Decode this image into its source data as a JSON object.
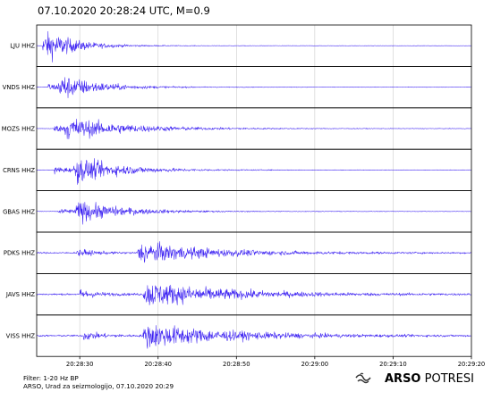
{
  "title": "07.10.2020  20:28:24 UTC, M=0.9",
  "footer": {
    "filter": "Filter: 1-20 Hz BP",
    "credit": "ARSO, Urad za seizmologijo, 07.10.2020  20:29"
  },
  "logo": {
    "brand": "ARSO",
    "product": "POTRESI",
    "icon": "seismograph-wave-icon"
  },
  "colors": {
    "trace": "#3a1ff2",
    "frame": "#000000",
    "grid": "#cccccc"
  },
  "chart_data": {
    "type": "line",
    "xlabel": "",
    "ylabel": "",
    "grid": "vertical",
    "time_ticks": [
      "20:28:30",
      "20:28:40",
      "20:28:50",
      "20:29:00",
      "20:29:10",
      "20:29:20"
    ],
    "time_range": [
      "20:28:24.5",
      "20:29:20"
    ],
    "series": [
      {
        "name": "LJU HHZ",
        "p_arrival": "20:28:25.3",
        "s_arrival": "20:28:25.8",
        "peak": 1.0,
        "noise": 0.015,
        "coda": 4
      },
      {
        "name": "VNDS HHZ",
        "p_arrival": "20:28:26.0",
        "s_arrival": "20:28:27.7",
        "peak": 0.9,
        "noise": 0.02,
        "coda": 5
      },
      {
        "name": "MOZS HHZ",
        "p_arrival": "20:28:26.7",
        "s_arrival": "20:28:28.5",
        "peak": 0.85,
        "noise": 0.02,
        "coda": 8
      },
      {
        "name": "CRNS HHZ",
        "p_arrival": "20:28:26.8",
        "s_arrival": "20:28:29.7",
        "peak": 0.95,
        "noise": 0.02,
        "coda": 6
      },
      {
        "name": "GBAS HHZ",
        "p_arrival": "20:28:27.2",
        "s_arrival": "20:28:29.9",
        "peak": 0.8,
        "noise": 0.02,
        "coda": 6
      },
      {
        "name": "PDKS HHZ",
        "p_arrival": "20:28:29.6",
        "s_arrival": "20:28:37.8",
        "peak": 0.85,
        "noise": 0.06,
        "coda": 9
      },
      {
        "name": "JAVS HHZ",
        "p_arrival": "20:28:30.0",
        "s_arrival": "20:28:38.6",
        "peak": 1.0,
        "noise": 0.07,
        "coda": 10
      },
      {
        "name": "VISS HHZ",
        "p_arrival": "20:28:30.5",
        "s_arrival": "20:28:38.5",
        "peak": 1.0,
        "noise": 0.07,
        "coda": 10
      }
    ]
  }
}
